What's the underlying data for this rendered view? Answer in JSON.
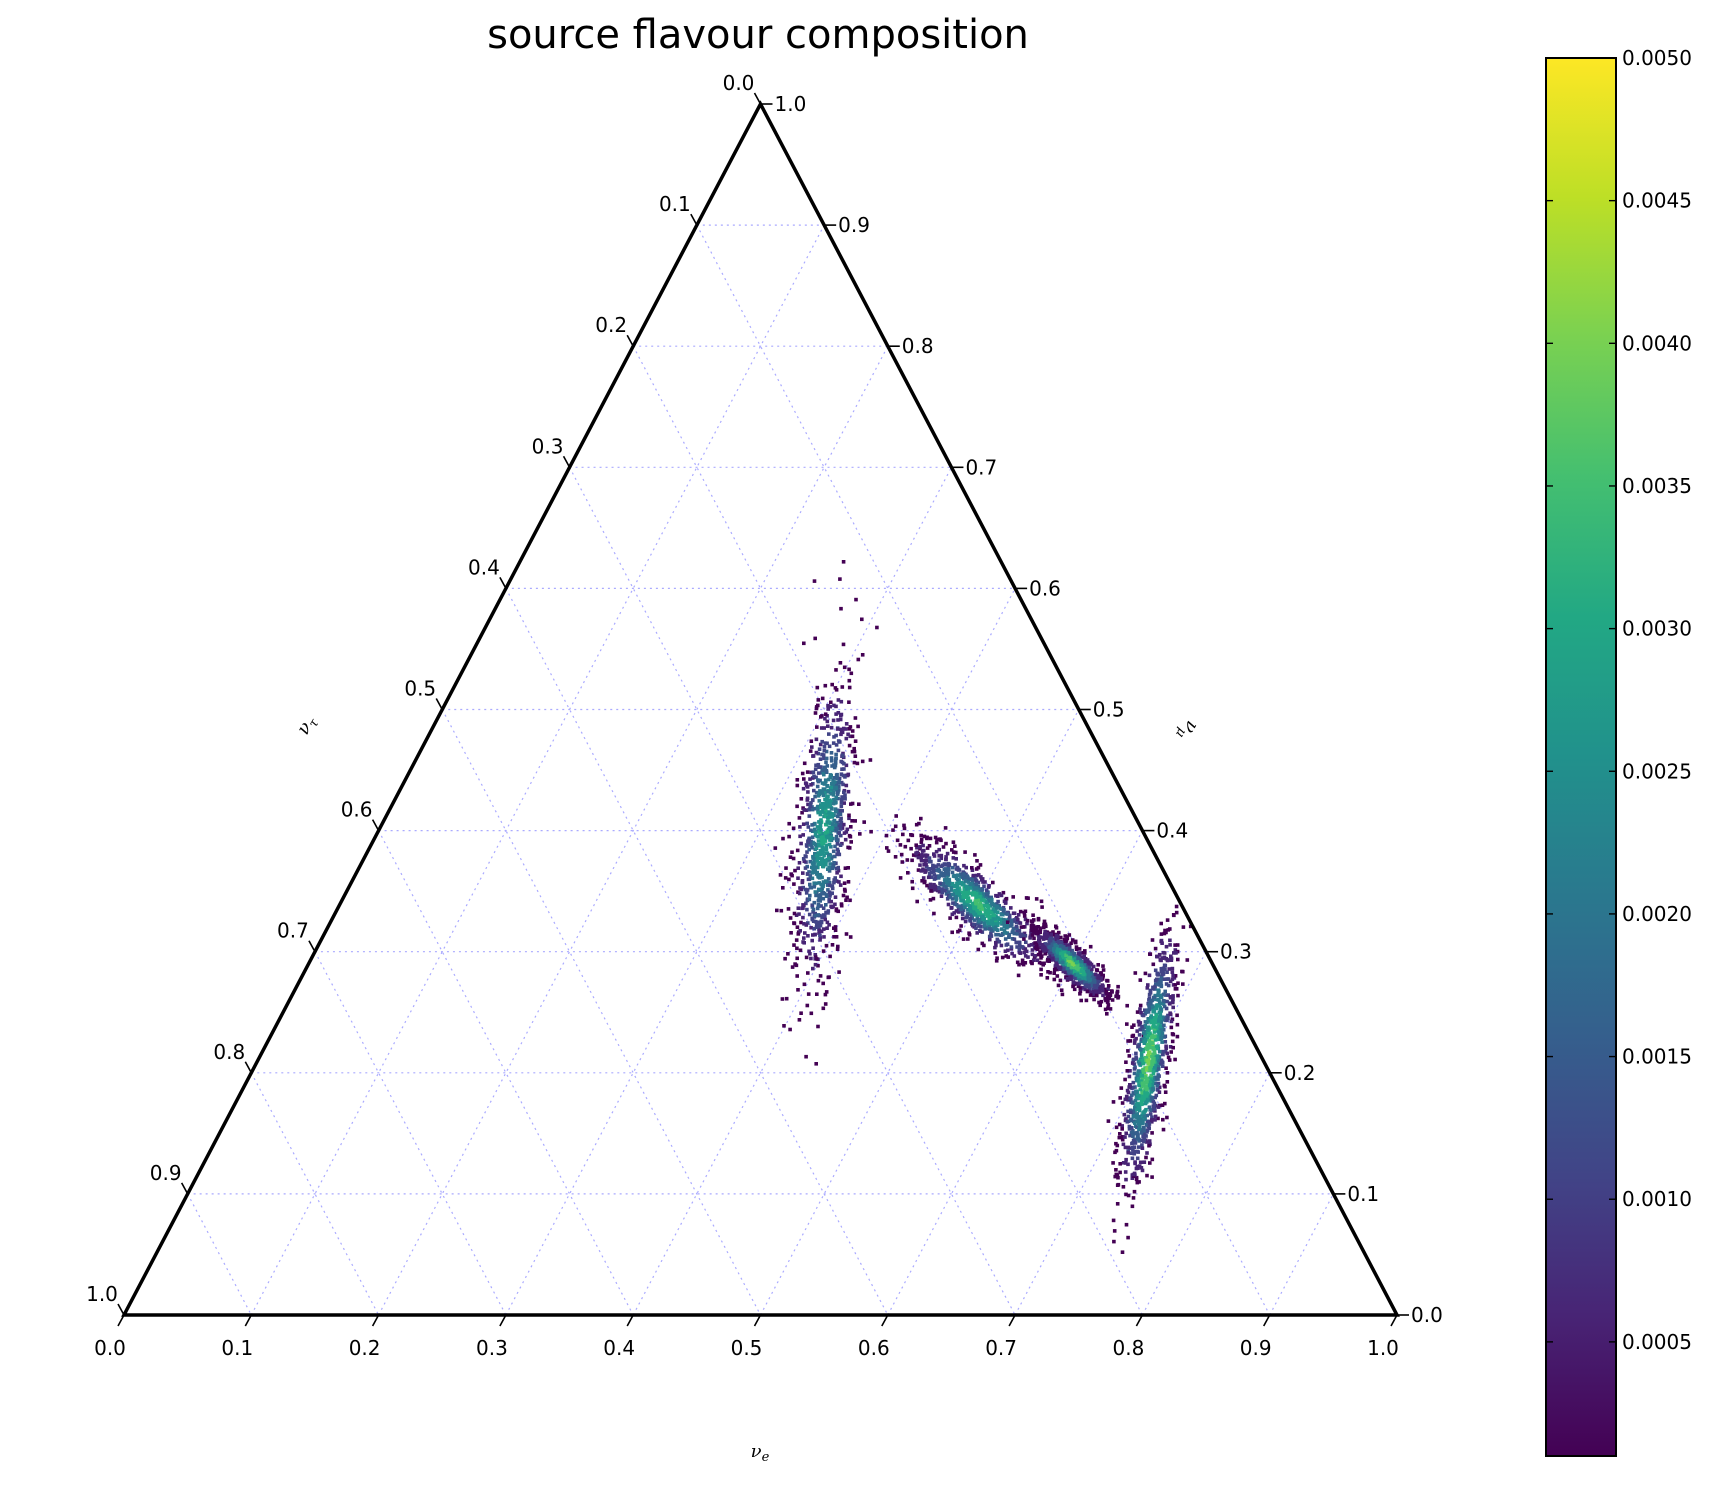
{
  "chart_data": {
    "type": "scatter",
    "subtype": "ternary-density",
    "title": "source flavour composition",
    "axes": {
      "bottom": {
        "label": "νe",
        "label_sub": "e",
        "ticks": [
          "0.0",
          "0.1",
          "0.2",
          "0.3",
          "0.4",
          "0.5",
          "0.6",
          "0.7",
          "0.8",
          "0.9",
          "1.0"
        ],
        "range": [
          0,
          1
        ]
      },
      "right": {
        "label": "νμ",
        "label_sub": "μ",
        "ticks": [
          "0.0",
          "0.1",
          "0.2",
          "0.3",
          "0.4",
          "0.5",
          "0.6",
          "0.7",
          "0.8",
          "0.9",
          "1.0"
        ],
        "range": [
          0,
          1
        ]
      },
      "left": {
        "label": "ντ",
        "label_sub": "τ",
        "ticks": [
          "0.0",
          "0.1",
          "0.2",
          "0.3",
          "0.4",
          "0.5",
          "0.6",
          "0.7",
          "0.8",
          "0.9",
          "1.0"
        ],
        "range": [
          0,
          1
        ]
      }
    },
    "grid": true,
    "grid_color": "#aaaaff",
    "colormap": "viridis",
    "colorbar": {
      "range": [
        0.0001,
        0.005
      ],
      "ticks": [
        "0.0005",
        "0.0010",
        "0.0015",
        "0.0020",
        "0.0025",
        "0.0030",
        "0.0035",
        "0.0040",
        "0.0045",
        "0.0050"
      ],
      "tick_values": [
        0.0005,
        0.001,
        0.0015,
        0.002,
        0.0025,
        0.003,
        0.0035,
        0.004,
        0.0045,
        0.005
      ]
    },
    "clusters": [
      {
        "center": {
          "nu_e": 0.35,
          "nu_mu": 0.4,
          "nu_tau": 0.25
        },
        "extent": {
          "nu_e": [
            0.3,
            0.41
          ],
          "nu_mu": [
            0.34,
            0.56
          ]
        },
        "peak_density": 0.003
      },
      {
        "center": {
          "nu_e": 0.5,
          "nu_mu": 0.34,
          "nu_tau": 0.16
        },
        "extent": {
          "nu_e": [
            0.42,
            0.57
          ],
          "nu_mu": [
            0.3,
            0.41
          ]
        },
        "peak_density": 0.0035
      },
      {
        "center": {
          "nu_e": 0.6,
          "nu_mu": 0.29,
          "nu_tau": 0.11
        },
        "extent": {
          "nu_e": [
            0.56,
            0.64
          ],
          "nu_mu": [
            0.26,
            0.32
          ]
        },
        "peak_density": 0.004
      },
      {
        "center": {
          "nu_e": 0.7,
          "nu_mu": 0.21,
          "nu_tau": 0.09
        },
        "extent": {
          "nu_e": [
            0.66,
            0.74
          ],
          "nu_mu": [
            0.12,
            0.31
          ]
        },
        "peak_density": 0.004
      }
    ]
  }
}
